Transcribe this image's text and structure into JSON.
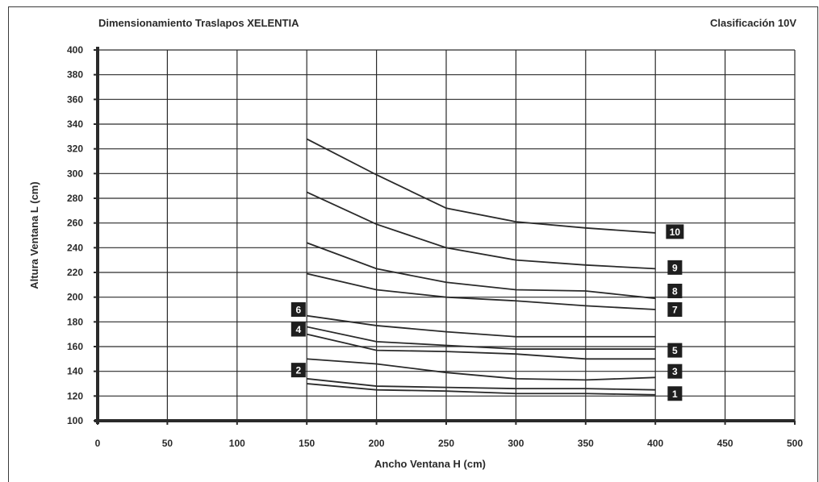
{
  "header": {
    "title": "Dimensionamiento Traslapos XELENTIA",
    "classification": "Clasificación 10V"
  },
  "colors": {
    "line": "#2a2a2a",
    "grid": "#2a2a2a",
    "tag_bg": "#1e1e1e",
    "tag_text": "#ffffff"
  },
  "chart_data": {
    "type": "line",
    "title": "Dimensionamiento Traslapos XELENTIA",
    "subtitle": "Clasificación 10V",
    "xlabel": "Ancho Ventana H (cm)",
    "ylabel": "Altura Ventana L (cm)",
    "xlim": [
      0,
      500
    ],
    "ylim": [
      100,
      400
    ],
    "xticks": [
      0,
      50,
      100,
      150,
      200,
      250,
      300,
      350,
      400,
      450,
      500
    ],
    "yticks": [
      100,
      120,
      140,
      160,
      180,
      200,
      220,
      240,
      260,
      280,
      300,
      320,
      340,
      360,
      380,
      400
    ],
    "grid": true,
    "series": [
      {
        "name": "1",
        "x": [
          150,
          200,
          250,
          300,
          350,
          400
        ],
        "y": [
          130,
          125,
          124,
          122,
          122,
          121
        ]
      },
      {
        "name": "2",
        "x": [
          150,
          200,
          250,
          300,
          350,
          400
        ],
        "y": [
          134,
          128,
          127,
          126,
          126,
          125
        ]
      },
      {
        "name": "3",
        "x": [
          150,
          200,
          250,
          300,
          350,
          400
        ],
        "y": [
          150,
          146,
          139,
          134,
          133,
          135
        ]
      },
      {
        "name": "4",
        "x": [
          150,
          200,
          250,
          300,
          350,
          400
        ],
        "y": [
          170,
          157,
          156,
          154,
          150,
          150
        ]
      },
      {
        "name": "5",
        "x": [
          150,
          200,
          250,
          300,
          350,
          400
        ],
        "y": [
          176,
          164,
          161,
          158,
          158,
          158
        ]
      },
      {
        "name": "6",
        "x": [
          150,
          200,
          250,
          300,
          350,
          400
        ],
        "y": [
          185,
          177,
          172,
          168,
          168,
          168
        ]
      },
      {
        "name": "7",
        "x": [
          150,
          200,
          250,
          300,
          350,
          400
        ],
        "y": [
          219,
          206,
          200,
          197,
          193,
          190
        ]
      },
      {
        "name": "8",
        "x": [
          150,
          200,
          250,
          300,
          350,
          400
        ],
        "y": [
          244,
          223,
          212,
          206,
          205,
          199
        ]
      },
      {
        "name": "9",
        "x": [
          150,
          200,
          250,
          300,
          350,
          400
        ],
        "y": [
          285,
          259,
          240,
          230,
          226,
          223
        ]
      },
      {
        "name": "10",
        "x": [
          150,
          200,
          250,
          300,
          350,
          400
        ],
        "y": [
          328,
          299,
          272,
          261,
          256,
          252
        ]
      }
    ],
    "tags": [
      {
        "label": "1",
        "side": "right",
        "x": 414,
        "y": 122
      },
      {
        "label": "2",
        "side": "left",
        "x": 144,
        "y": 141
      },
      {
        "label": "3",
        "side": "right",
        "x": 414,
        "y": 140
      },
      {
        "label": "4",
        "side": "left",
        "x": 144,
        "y": 174
      },
      {
        "label": "5",
        "side": "right",
        "x": 414,
        "y": 157
      },
      {
        "label": "6",
        "side": "left",
        "x": 144,
        "y": 190
      },
      {
        "label": "7",
        "side": "right",
        "x": 414,
        "y": 190
      },
      {
        "label": "8",
        "side": "right",
        "x": 414,
        "y": 205
      },
      {
        "label": "9",
        "side": "right",
        "x": 414,
        "y": 224
      },
      {
        "label": "10",
        "side": "right",
        "x": 414,
        "y": 253
      }
    ]
  }
}
